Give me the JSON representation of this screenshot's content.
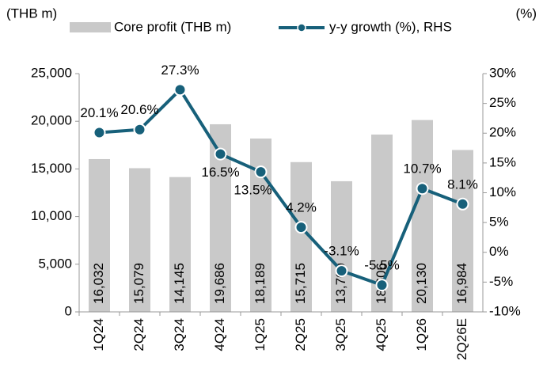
{
  "chart_data": {
    "type": "bar-line",
    "y_label": "(THB m)",
    "y2_label": "(%)",
    "categories": [
      "1Q24",
      "2Q24",
      "3Q24",
      "4Q24",
      "1Q25",
      "2Q25",
      "3Q25",
      "4Q25",
      "1Q26",
      "2Q26E"
    ],
    "series": [
      {
        "name": "Core profit (THB m)",
        "color": "#c9c9c9",
        "type": "bar",
        "values": [
          16032,
          15079,
          14145,
          19686,
          18189,
          15715,
          13709,
          18606,
          20130,
          16984
        ],
        "value_labels": [
          "16,032",
          "15,079",
          "14,145",
          "19,686",
          "18,189",
          "15,715",
          "13,709",
          "18,606",
          "20,130",
          "16,984"
        ]
      },
      {
        "name": "y-y growth (%), RHS",
        "color": "#17607a",
        "type": "line",
        "axis": "y2",
        "values": [
          20.1,
          20.6,
          27.3,
          16.5,
          13.5,
          4.2,
          -3.1,
          -5.5,
          10.7,
          8.1
        ],
        "value_labels": [
          "20.1%",
          "20.6%",
          "27.3%",
          "16.5%",
          "13.5%",
          "4.2%",
          "-3.1%",
          "-5.5%",
          "10.7%",
          "8.1%"
        ]
      }
    ],
    "ylim": [
      0,
      25000
    ],
    "yticks": [
      0,
      {
        "value": 5000,
        "label": "5,000"
      },
      {
        "value": 10000,
        "label": "10,000"
      },
      {
        "value": 15000,
        "label": "15,000"
      },
      {
        "value": 20000,
        "label": "20,000"
      },
      {
        "value": 25000,
        "label": "25,000"
      }
    ],
    "y2lim": [
      -10,
      30
    ],
    "y2ticks": [
      {
        "value": -10,
        "label": "-10%"
      },
      {
        "value": -5,
        "label": "-5%"
      },
      {
        "value": 0,
        "label": "0%"
      },
      {
        "value": 5,
        "label": "5%"
      },
      {
        "value": 10,
        "label": "10%"
      },
      {
        "value": 15,
        "label": "15%"
      },
      {
        "value": 20,
        "label": "20%"
      },
      {
        "value": 25,
        "label": "25%"
      },
      {
        "value": 30,
        "label": "30%"
      }
    ]
  }
}
